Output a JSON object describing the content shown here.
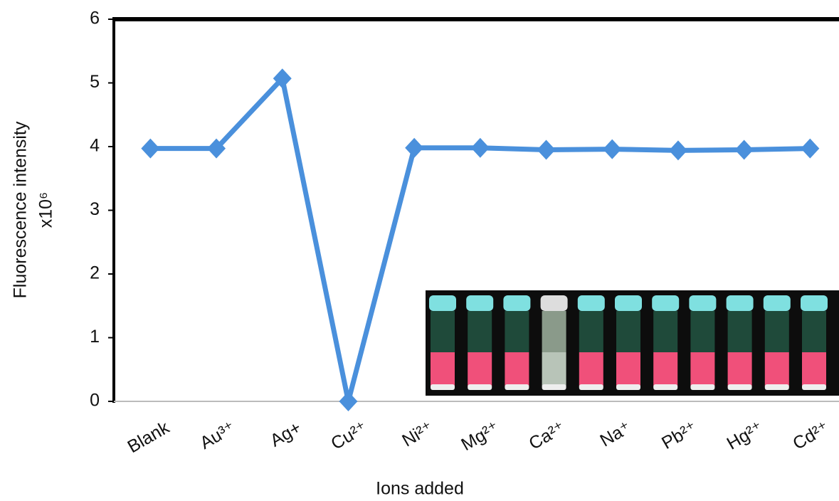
{
  "chart_data": {
    "type": "line",
    "x_label": "Ions added",
    "y_label": [
      "Fluorescence intensity",
      "x10⁶"
    ],
    "categories": [
      "Blank",
      "Au³⁺",
      "Ag+",
      "Cu²⁺",
      "Ni²⁺",
      "Mg²⁺",
      "Ca²⁺",
      "Na⁺",
      "Pb²⁺",
      "Hg²⁺",
      "Cd²⁺"
    ],
    "series": [
      {
        "color": "#4a90dc",
        "values": [
          3.97,
          3.97,
          5.07,
          0,
          3.98,
          3.98,
          3.95,
          3.96,
          3.94,
          3.95,
          3.97
        ]
      }
    ],
    "ylim": [
      0,
      6
    ],
    "yticks": [
      0,
      1,
      2,
      3,
      4,
      5,
      6
    ]
  }
}
